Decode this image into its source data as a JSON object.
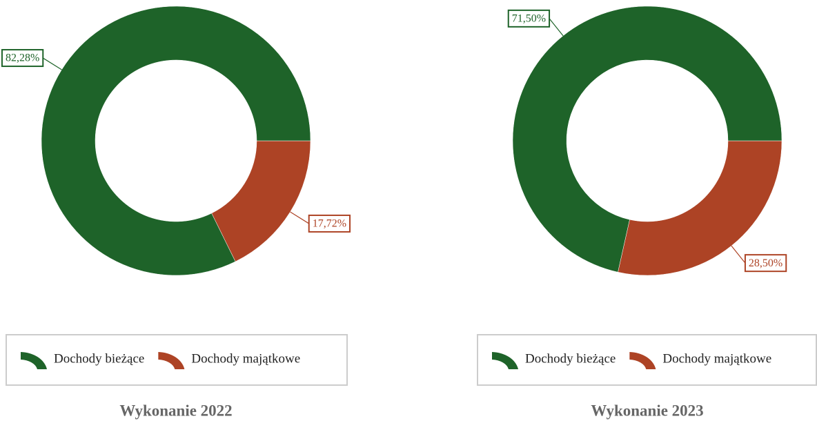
{
  "chart_data": [
    {
      "type": "pie",
      "title": "Wykonanie 2022",
      "categories": [
        "Dochody bieżące",
        "Dochody majątkowe"
      ],
      "values": [
        82.28,
        17.72
      ],
      "value_labels": [
        "82,28%",
        "17,72%"
      ],
      "colors": [
        "#1e6329",
        "#ad4325"
      ],
      "donut": true
    },
    {
      "type": "pie",
      "title": "Wykonanie 2023",
      "categories": [
        "Dochody bieżące",
        "Dochody majątkowe"
      ],
      "values": [
        71.5,
        28.5
      ],
      "value_labels": [
        "71,50%",
        "28,50%"
      ],
      "colors": [
        "#1e6329",
        "#ad4325"
      ],
      "donut": true
    }
  ]
}
